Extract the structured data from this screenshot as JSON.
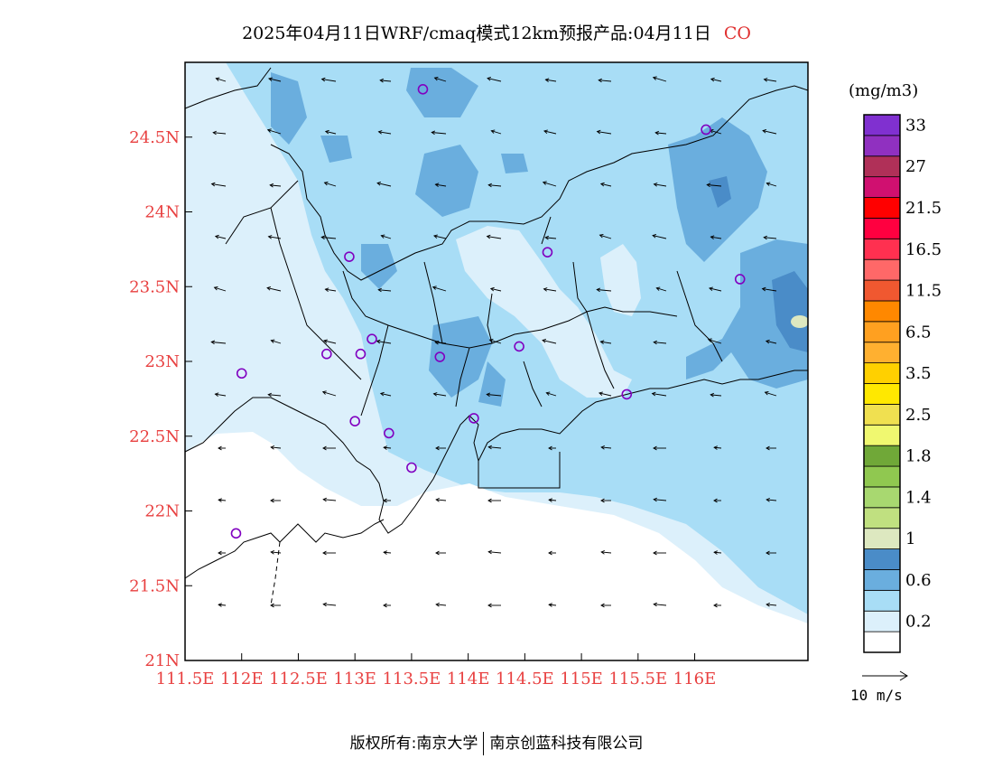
{
  "title": {
    "main": "2025年04月11日WRF/cmaq模式12km预报产品:04月11日",
    "pollutant": "CO"
  },
  "map": {
    "lon_range": [
      111.5,
      117.0
    ],
    "lat_range": [
      21.0,
      25.0
    ],
    "lat_ticks": [
      "24.5N",
      "24N",
      "23.5N",
      "23N",
      "22.5N",
      "22N",
      "21.5N",
      "21N"
    ],
    "lon_ticks": [
      "111.5E",
      "112E",
      "112.5E",
      "113E",
      "113.5E",
      "114E",
      "114.5E",
      "115E",
      "115.5E",
      "116E"
    ],
    "tick_color": "#e84040",
    "station_color": "#8000c0",
    "stations": [
      {
        "lon": 113.6,
        "lat": 24.82
      },
      {
        "lon": 116.1,
        "lat": 24.55
      },
      {
        "lon": 112.95,
        "lat": 23.7
      },
      {
        "lon": 114.7,
        "lat": 23.73
      },
      {
        "lon": 116.4,
        "lat": 23.55
      },
      {
        "lon": 113.15,
        "lat": 23.15
      },
      {
        "lon": 112.75,
        "lat": 23.05
      },
      {
        "lon": 113.05,
        "lat": 23.05
      },
      {
        "lon": 113.75,
        "lat": 23.03
      },
      {
        "lon": 114.45,
        "lat": 23.1
      },
      {
        "lon": 112.0,
        "lat": 22.92
      },
      {
        "lon": 113.0,
        "lat": 22.6
      },
      {
        "lon": 113.3,
        "lat": 22.52
      },
      {
        "lon": 114.05,
        "lat": 22.62
      },
      {
        "lon": 115.4,
        "lat": 22.78
      },
      {
        "lon": 113.5,
        "lat": 22.29
      },
      {
        "lon": 111.95,
        "lat": 21.85
      }
    ]
  },
  "legend": {
    "unit": "(mg/m3)",
    "colors": [
      "#ffffff",
      "#dcf0fb",
      "#a8ddf6",
      "#6aaede",
      "#4a8cc8",
      "#dde8c0",
      "#c0e080",
      "#a8d870",
      "#90c850",
      "#70a838",
      "#f0f870",
      "#f0e050",
      "#ffe800",
      "#ffd000",
      "#ffb030",
      "#ffa020",
      "#ff8800",
      "#f05830",
      "#ff6868",
      "#ff3050",
      "#ff0040",
      "#ff0000",
      "#d01070",
      "#b03058",
      "#9030c0",
      "#8030d0"
    ],
    "labels": [
      "0.2",
      "0.6",
      "1",
      "1.4",
      "1.8",
      "2.5",
      "3.5",
      "6.5",
      "11.5",
      "16.5",
      "21.5",
      "27",
      "33"
    ]
  },
  "wind_reference": "10 m/s",
  "footer": {
    "left": "版权所有:南京大学",
    "right": "南京创蓝科技有限公司"
  }
}
